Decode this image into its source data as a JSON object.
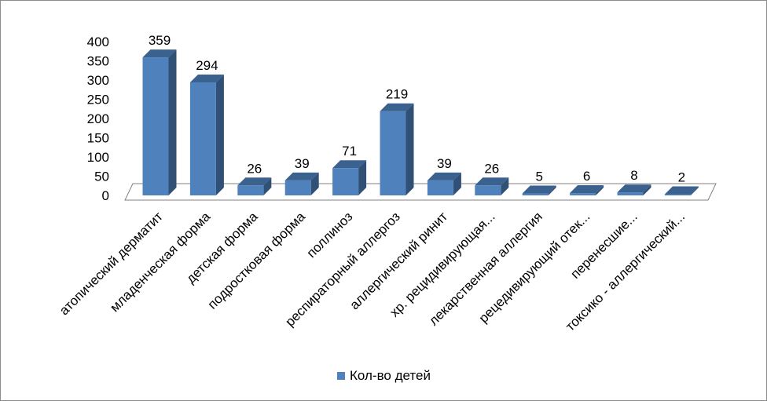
{
  "chart_data": {
    "type": "bar",
    "title": "",
    "xlabel": "",
    "ylabel": "",
    "ylim": [
      0,
      400
    ],
    "yticks": [
      0,
      50,
      100,
      150,
      200,
      250,
      300,
      350,
      400
    ],
    "grid": false,
    "legend_position": "bottom",
    "categories": [
      "атопический дерматит",
      "младенческая форма",
      "детская форма",
      "подростковая форма",
      "поллиноз",
      "респираторный аллергоз",
      "аллергический ринит",
      "хр. рецидивирующая...",
      "лекарственная аллергия",
      "рецедивирующий отек...",
      "перенесшие...",
      "токсико - аллергический..."
    ],
    "series": [
      {
        "name": "Кол-во детей",
        "values": [
          359,
          294,
          26,
          39,
          71,
          219,
          39,
          26,
          5,
          6,
          8,
          2
        ],
        "color": "#4f81bd"
      }
    ]
  }
}
